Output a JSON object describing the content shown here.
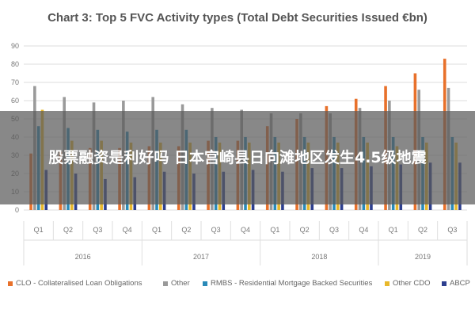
{
  "chart_data": {
    "type": "bar",
    "title": "Chart 3: Top 5 FVC Activity types (Total Debt Securities Issued €bn)",
    "ylim": [
      0,
      90
    ],
    "yticks": [
      0,
      10,
      20,
      30,
      40,
      50,
      60,
      70,
      80,
      90
    ],
    "grid": true,
    "legend_position": "bottom",
    "categories": [
      "Q1",
      "Q2",
      "Q3",
      "Q4",
      "Q1",
      "Q2",
      "Q3",
      "Q4",
      "Q1",
      "Q2",
      "Q3",
      "Q4",
      "Q1",
      "Q2",
      "Q3"
    ],
    "year_groups": [
      {
        "label": "2016",
        "count": 4
      },
      {
        "label": "2017",
        "count": 4
      },
      {
        "label": "2018",
        "count": 4
      },
      {
        "label": "2019",
        "count": 3
      }
    ],
    "series": [
      {
        "name": "CLO - Collateralised Loan Obligations",
        "color": "#e8712b",
        "values": [
          31,
          32,
          34,
          34,
          35,
          35,
          38,
          38,
          46,
          50,
          57,
          61,
          68,
          75,
          83
        ]
      },
      {
        "name": "Other",
        "color": "#9a9a9a",
        "values": [
          68,
          62,
          59,
          60,
          62,
          58,
          56,
          55,
          53,
          53,
          53,
          56,
          60,
          66,
          67
        ]
      },
      {
        "name": "RMBS - Residential Mortgage Backed Securities",
        "color": "#2a8ab8",
        "values": [
          46,
          45,
          44,
          43,
          44,
          44,
          40,
          40,
          40,
          40,
          40,
          40,
          40,
          40,
          40
        ]
      },
      {
        "name": "Other CDO",
        "color": "#e8b82b",
        "values": [
          55,
          38,
          38,
          37,
          37,
          37,
          37,
          37,
          37,
          37,
          37,
          37,
          35,
          37,
          37
        ]
      },
      {
        "name": "ABCP",
        "color": "#2d3f8f",
        "values": [
          22,
          20,
          17,
          18,
          21,
          20,
          21,
          22,
          21,
          23,
          23,
          24,
          25,
          26,
          26
        ]
      }
    ]
  },
  "overlay_text": "股票融资是利好吗 日本宫崎县日向滩地区发生4.5级地震"
}
